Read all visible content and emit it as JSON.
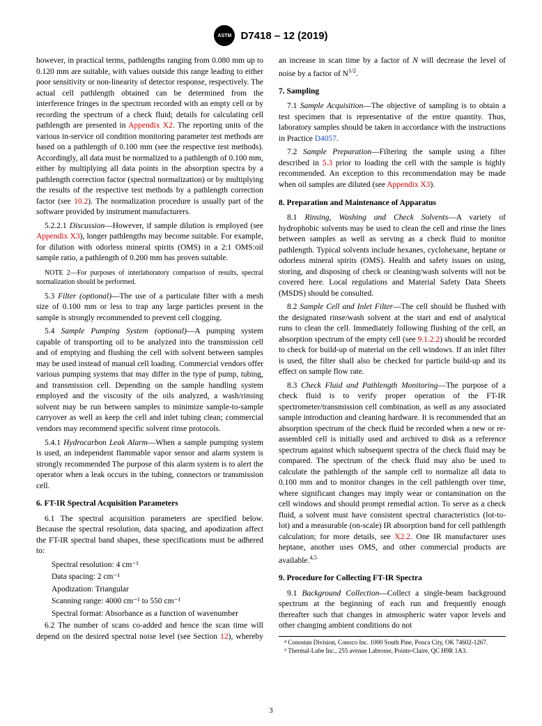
{
  "header": {
    "logo_text": "ASTM",
    "doc_id": "D7418 – 12 (2019)"
  },
  "col1": {
    "p5_2_2_cont": "however, in practical terms, pathlengths ranging from 0.080 mm up to 0.120 mm are suitable, with values outside this range leading to either poor sensitivity or non-linearity of detector response, respectively. The actual cell pathlength obtained can be determined from the interference fringes in the spectrum recorded with an empty cell or by recording the spectrum of a check fluid; details for calculating cell pathlength are presented in ",
    "appx2": "Appendix X2",
    "p5_2_2_cont2": ". The reporting units of the various in-service oil condition monitoring parameter test methods are based on a pathlength of 0.100 mm (see the respective test methods). Accordingly, all data must be normalized to a pathlength of 0.100 mm, either by multiplying all data points in the absorption spectra by a pathlength correction factor (spectral normalization) or by multiplying the results of the respective test methods by a pathlength correction factor (see ",
    "ref10_2": "10.2",
    "p5_2_2_cont3": "). The normalization procedure is usually part of the software provided by instrument manufacturers.",
    "p5_2_2_1_label": "5.2.2.1 ",
    "p5_2_2_1_title": "Discussion",
    "p5_2_2_1_a": "—However, if sample dilution is employed (see ",
    "appx3": "Appendix X3",
    "p5_2_2_1_b": "), longer pathlengths may become suitable. For example, for dilution with odorless mineral spirits (OMS) in a 2:1 OMS:oil sample ratio, a pathlength of 0.200 mm has proven suitable.",
    "note2_label": "NOTE 2—",
    "note2": "For purposes of interlaboratory comparison of results, spectral normalization should be performed.",
    "p5_3_label": "5.3 ",
    "p5_3_title": "Filter (optional)",
    "p5_3": "—The use of a particulate filter with a mesh size of 0.100 mm or less to trap any large particles present in the sample is strongly recommended to prevent cell clogging.",
    "p5_4_label": "5.4 ",
    "p5_4_title": "Sample Pumping System (optional)",
    "p5_4": "—A pumping system capable of transporting oil to be analyzed into the transmission cell and of emptying and flushing the cell with solvent between samples may be used instead of manual cell loading. Commercial vendors offer various pumping systems that may differ in the type of pump, tubing, and transmission cell. Depending on the sample handling system employed and the viscosity of the oils analyzed, a wash/rinsing solvent may be run between samples to minimize sample-to-sample carryover as well as keep the cell and inlet tubing clean; commercial vendors may recommend specific solvent rinse protocols.",
    "p5_4_1_label": "5.4.1 ",
    "p5_4_1_title": "Hydrocarbon Leak Alarm",
    "p5_4_1": "—When a sample pumping system is used, an independent flammable vapor sensor and alarm system is strongly recommended The purpose of this alarm system is to alert the operator when a leak occurs in the tubing, connectors or transmission cell.",
    "sec6": "6. FT-IR Spectral Acquisition Parameters",
    "p6_1": "6.1 The spectral acquisition parameters are specified below. Because the spectral resolution, data spacing, and apodization affect the FT-IR spectral band shapes, these specifications must be adhered to:",
    "li1": "Spectral resolution: 4 cm⁻¹",
    "li2": "Data spacing: 2 cm⁻¹",
    "li3": "Apodization: Triangular",
    "li4": "Scanning range: 4000 cm⁻¹ to 550 cm⁻¹",
    "li5": "Spectral format: Absorbance as a function of wavenumber",
    "p6_2a": "6.2 The number of scans co-added and hence the scan time will depend on the desired spectral noise level (see Section ",
    "ref12": "12",
    "p6_2b": "), "
  },
  "col2": {
    "p6_2c": "whereby an increase in scan time by a factor of ",
    "p6_2_N": "N",
    "p6_2d": " will decrease the level of noise by a factor of N",
    "p6_2_sup": "1/2",
    "p6_2e": ".",
    "sec7": "7. Sampling",
    "p7_1_label": "7.1 ",
    "p7_1_title": "Sample Acquisition",
    "p7_1a": "—The objective of sampling is to obtain a test specimen that is representative of the entire quantity. Thus, laboratory samples should be taken in accordance with the instructions in Practice ",
    "d4057": "D4057",
    "p7_1b": ".",
    "p7_2_label": "7.2 ",
    "p7_2_title": "Sample Preparation",
    "p7_2a": "—Filtering the sample using a filter described in ",
    "ref5_3": "5.3",
    "p7_2b": " prior to loading the cell with the sample is highly recommended. An exception to this recommendation may be made when oil samples are diluted (see ",
    "appx3b": "Appendix X3",
    "p7_2c": ").",
    "sec8": "8. Preparation and Maintenance of Apparatus",
    "p8_1_label": "8.1 ",
    "p8_1_title": "Rinsing, Washing and Check Solvents",
    "p8_1": "—A variety of hydrophobic solvents may be used to clean the cell and rinse the lines between samples as well as serving as a check fluid to monitor pathlength. Typical solvents include hexanes, cyclohexane, heptane or odorless mineral spirits (OMS). Health and safety issues on using, storing, and disposing of check or cleaning/wash solvents will not be covered here. Local regulations and Material Safety Data Sheets (MSDS) should be consulted.",
    "p8_2_label": "8.2 ",
    "p8_2_title": "Sample Cell and Inlet Filter",
    "p8_2a": "—The cell should be flushed with the designated rinse/wash solvent at the start and end of analytical runs to clean the cell. Immediately following flushing of the cell, an absorption spectrum of the empty cell (see ",
    "ref9_1_2_2": "9.1.2.2",
    "p8_2b": ") should be recorded to check for build-up of material on the cell windows. If an inlet filter is used, the filter shall also be checked for particle build-up and its effect on sample flow rate.",
    "p8_3_label": "8.3 ",
    "p8_3_title": "Check Fluid and Pathlength Monitoring",
    "p8_3a": "—The purpose of a check fluid is to verify proper operation of the FT-IR spectrometer/transmission cell combination, as well as any associated sample introduction and cleaning hardware. It is recommended that an absorption spectrum of the check fluid be recorded when a new or re-assembled cell is initially used and archived to disk as a reference spectrum against which subsequent spectra of the check fluid may be compared. The spectrum of the check fluid may also be used to calculate the pathlength of the sample cell to normalize all data to 0.100 mm and to monitor changes in the cell pathlength over time, where significant changes may imply wear or contamination on the cell windows and should prompt remedial action. To serve as a check fluid, a solvent must have consistent spectral characteristics (lot-to-lot) and a measurable (on-scale) IR absorption band for cell pathlength calculation; for more details, see ",
    "x2_2": "X2.2",
    "p8_3b": ". One IR manufacturer uses heptane, another uses OMS, and other commercial products are available.",
    "fn45": "4,5",
    "sec9": "9. Procedure for Collecting FT-IR Spectra",
    "p9_1_label": "9.1 ",
    "p9_1_title": "Background Collection",
    "p9_1": "—Collect a single-beam background spectrum at the beginning of each run and frequently enough thereafter such that changes in atmospheric water vapor levels and other changing ambient conditions do not"
  },
  "footnotes": {
    "fn4": "⁴ Conostan Division, Conoco Inc. 1000 South Pine, Ponca City, OK 74602-1267.",
    "fn5": "⁵ Thermal-Lube Inc., 255 avenue Labrosse, Pointe-Claire, QC H9R 1A3."
  },
  "page_num": "3"
}
